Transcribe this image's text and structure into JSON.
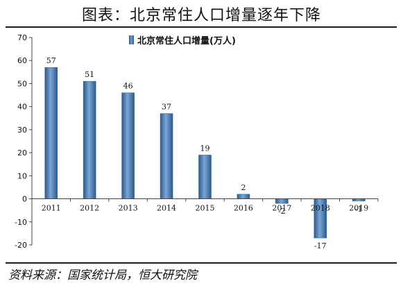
{
  "header": {
    "title": "图表：北京常住人口增量逐年下降"
  },
  "footer": {
    "source": "资料来源：国家统计局，恒大研究院"
  },
  "chart_data": {
    "type": "bar",
    "title": "",
    "xlabel": "",
    "ylabel": "",
    "categories": [
      "2011",
      "2012",
      "2013",
      "2014",
      "2015",
      "2016",
      "2017",
      "2018",
      "2019"
    ],
    "series": [
      {
        "name": "北京常住人口增量(万人)",
        "values": [
          57,
          51,
          46,
          37,
          19,
          2,
          -2,
          -17,
          -1
        ]
      }
    ],
    "data_labels": [
      "57",
      "51",
      "46",
      "37",
      "19",
      "2",
      "-2",
      "-17",
      "-1"
    ],
    "ylim": [
      -20,
      70
    ],
    "yticks": [
      -20,
      -10,
      0,
      10,
      20,
      30,
      40,
      50,
      60,
      70
    ],
    "grid": false,
    "legend": "top-center",
    "bar_color": "#4a7fbd"
  }
}
